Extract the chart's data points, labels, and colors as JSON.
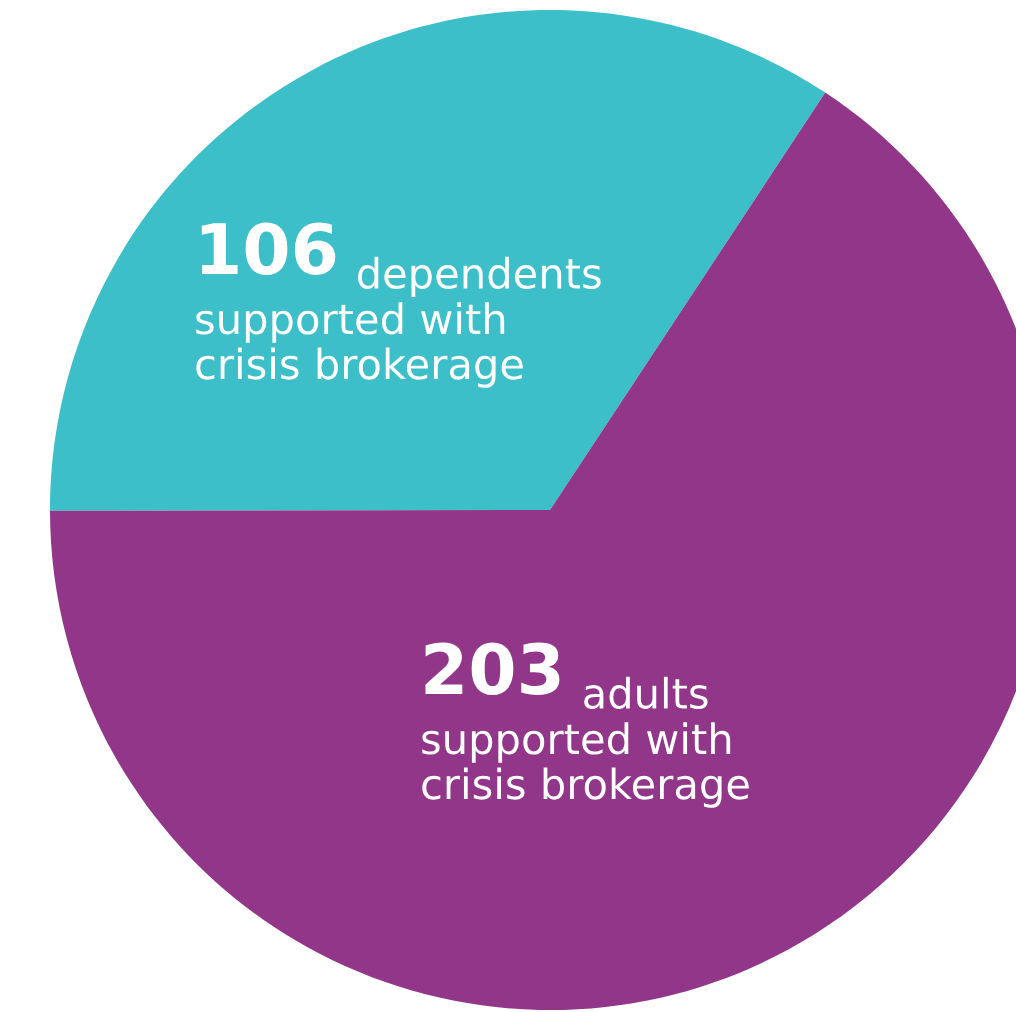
{
  "chart_data": {
    "type": "pie",
    "categories": [
      "dependents\nsupported with\ncrisis brokerage",
      "adults\nsupported with\ncrisis brokerage"
    ],
    "values": [
      106,
      203
    ],
    "colors": [
      "#3dbfc9",
      "#913689"
    ],
    "data_labels": true
  }
}
